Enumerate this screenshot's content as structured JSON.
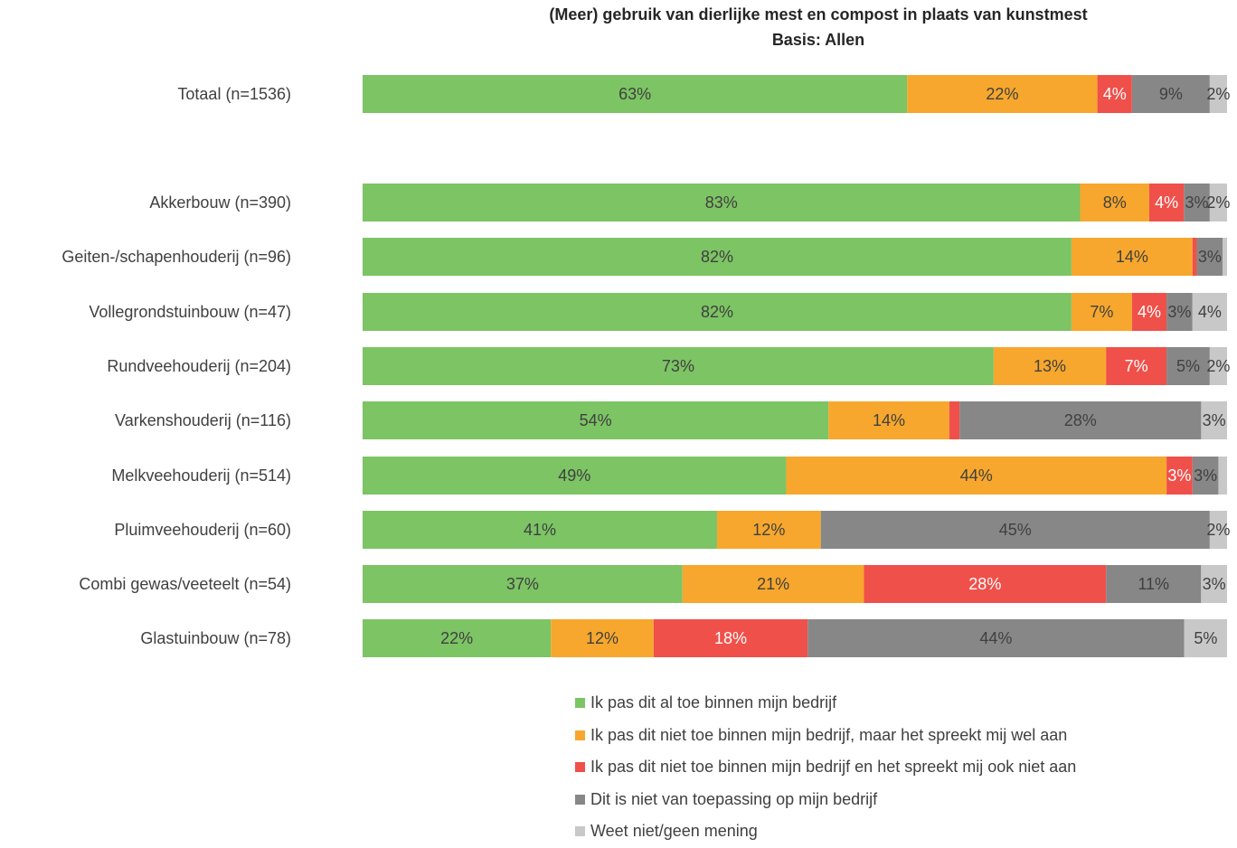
{
  "chart_data": {
    "type": "bar",
    "orientation": "horizontal",
    "stacked": true,
    "percent_stacked": true,
    "title": "(Meer) gebruik van dierlijke mest en compost in plaats van kunstmest",
    "subtitle": "Basis: Allen",
    "xlim": [
      0,
      100
    ],
    "grid": false,
    "legend_position": "bottom",
    "categories": [
      "Totaal (n=1536)",
      "Akkerbouw (n=390)",
      "Geiten-/schapenhouderij (n=96)",
      "Vollegrondstuinbouw (n=47)",
      "Rundveehouderij (n=204)",
      "Varkenshouderij (n=116)",
      "Melkveehouderij (n=514)",
      "Pluimveehouderij (n=60)",
      "Combi gewas/veeteelt (n=54)",
      "Glastuinbouw (n=78)"
    ],
    "series": [
      {
        "name": "Ik pas dit al toe binnen mijn bedrijf",
        "color": "#7cc464",
        "values": [
          63,
          83,
          82,
          82,
          73,
          54,
          49,
          41,
          37,
          22
        ],
        "labels": [
          "63%",
          "83%",
          "82%",
          "82%",
          "73%",
          "54%",
          "49%",
          "41%",
          "37%",
          "22%"
        ]
      },
      {
        "name": "Ik pas dit niet toe binnen mijn bedrijf, maar het spreekt mij wel aan",
        "color": "#f7a72d",
        "values": [
          22,
          8,
          14,
          7,
          13,
          14,
          44,
          12,
          21,
          12
        ],
        "labels": [
          "22%",
          "8%",
          "14%",
          "7%",
          "13%",
          "14%",
          "44%",
          "12%",
          "21%",
          "12%"
        ]
      },
      {
        "name": "Ik pas dit niet toe binnen mijn bedrijf en het spreekt mij ook niet aan",
        "color": "#f0504a",
        "values": [
          4,
          4,
          0.5,
          4,
          7,
          1.2,
          3,
          0,
          28,
          18
        ],
        "labels": [
          "4%",
          "4%",
          "",
          "4%",
          "7%",
          "",
          "3%",
          "",
          "28%",
          "18%"
        ]
      },
      {
        "name": "Dit is niet van toepassing op mijn bedrijf",
        "color": "#878787",
        "values": [
          9,
          3,
          3,
          3,
          5,
          28,
          3,
          45,
          11,
          44
        ],
        "labels": [
          "9%",
          "3%",
          "3%",
          "3%",
          "5%",
          "28%",
          "3%",
          "45%",
          "11%",
          "44%"
        ]
      },
      {
        "name": "Weet niet/geen mening",
        "color": "#c8c8c8",
        "values": [
          2,
          2,
          0.5,
          4,
          2,
          3,
          1,
          2,
          3,
          5
        ],
        "labels": [
          "2%",
          "2%",
          "",
          "4%",
          "2%",
          "3%",
          "",
          "2%",
          "3%",
          "5%"
        ]
      }
    ]
  }
}
